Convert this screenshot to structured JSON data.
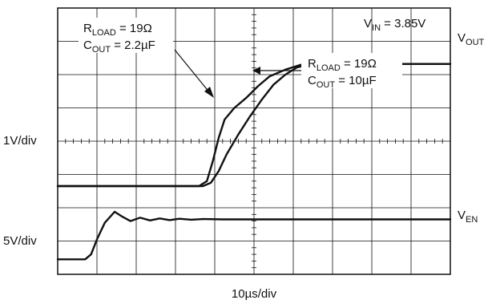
{
  "chart_data": {
    "type": "line",
    "title": "",
    "xlabel": "10µs/div",
    "grid": {
      "visible": true,
      "x_divisions": 10,
      "y_divisions": 8
    },
    "xlim": [
      0,
      10
    ],
    "ylim": [
      0,
      8
    ],
    "scales": {
      "upper_channel": "1V/div",
      "lower_channel": "5V/div"
    },
    "series": [
      {
        "name": "R_LOAD = 19Ω, C_OUT = 2.2µF",
        "x": [
          0,
          3.6,
          3.8,
          3.95,
          4.1,
          4.25,
          4.5,
          4.8,
          5.1,
          5.4,
          5.8,
          6.2,
          7,
          8,
          9,
          10
        ],
        "y": [
          2.65,
          2.65,
          2.8,
          3.4,
          4.1,
          4.65,
          5.0,
          5.3,
          5.65,
          5.95,
          6.15,
          6.3,
          6.32,
          6.32,
          6.32,
          6.32
        ]
      },
      {
        "name": "R_LOAD = 19Ω, C_OUT = 10µF",
        "x": [
          0,
          3.7,
          3.9,
          4.1,
          4.3,
          4.6,
          4.9,
          5.2,
          5.5,
          5.8,
          6.1,
          6.4,
          7,
          8,
          9,
          10
        ],
        "y": [
          2.65,
          2.65,
          2.75,
          3.1,
          3.6,
          4.2,
          4.75,
          5.25,
          5.7,
          6.0,
          6.22,
          6.3,
          6.32,
          6.32,
          6.32,
          6.32
        ]
      },
      {
        "name": "V_EN",
        "x": [
          0,
          0.7,
          0.85,
          1.0,
          1.2,
          1.45,
          1.65,
          1.85,
          2.1,
          2.35,
          2.6,
          2.85,
          3.1,
          3.4,
          3.7,
          4.2,
          10
        ],
        "y": [
          0.45,
          0.45,
          0.6,
          1.05,
          1.55,
          1.88,
          1.73,
          1.6,
          1.7,
          1.62,
          1.68,
          1.63,
          1.67,
          1.64,
          1.66,
          1.65,
          1.65
        ]
      }
    ],
    "annotations": [
      {
        "id": "vin",
        "base": "V",
        "sub": "IN",
        "rest": " = 3.85V"
      },
      {
        "id": "ann22",
        "lines": [
          {
            "base": "R",
            "sub": "LOAD",
            "rest": " = 19Ω"
          },
          {
            "base": "C",
            "sub": "OUT",
            "rest": " = 2.2µF"
          }
        ]
      },
      {
        "id": "ann10",
        "lines": [
          {
            "base": "R",
            "sub": "LOAD",
            "rest": " = 19Ω"
          },
          {
            "base": "C",
            "sub": "OUT",
            "rest": " = 10µF"
          }
        ]
      }
    ],
    "channel_labels": {
      "vout": {
        "base": "V",
        "sub": "OUT"
      },
      "ven": {
        "base": "V",
        "sub": "EN"
      }
    }
  }
}
